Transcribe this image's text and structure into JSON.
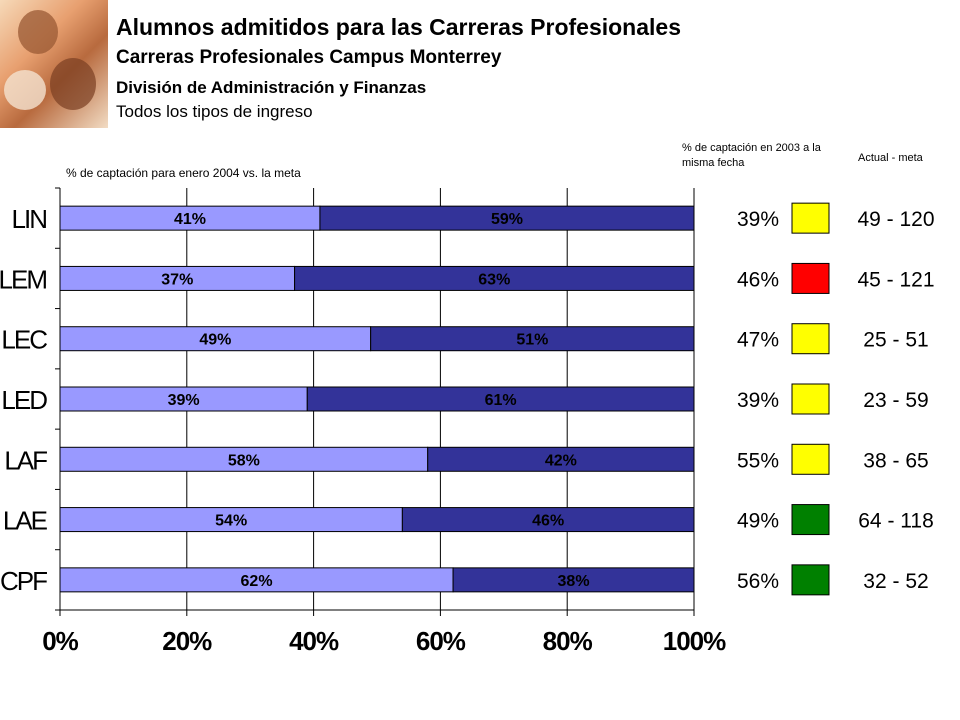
{
  "header": {
    "title": "Alumnos admitidos para las Carreras Profesionales",
    "subtitle": "Carreras Profesionales Campus Monterrey",
    "division": "División de Administración y Finanzas",
    "filter": "Todos los tipos de ingreso"
  },
  "chart_data": {
    "type": "bar",
    "orientation": "horizontal",
    "stacked": true,
    "title": "% de captación para enero 2004 vs. la meta",
    "categories": [
      "LIN",
      "LEM",
      "LEC",
      "LED",
      "LAF",
      "LAE",
      "CPF"
    ],
    "series": [
      {
        "values": [
          41,
          37,
          49,
          39,
          58,
          54,
          62
        ]
      },
      {
        "values": [
          59,
          63,
          51,
          61,
          42,
          46,
          38
        ]
      }
    ],
    "data_labels": [
      [
        "41%",
        "37%",
        "49%",
        "39%",
        "58%",
        "54%",
        "62%"
      ],
      [
        "59%",
        "63%",
        "51%",
        "61%",
        "42%",
        "46%",
        "38%"
      ]
    ],
    "xlim": [
      0,
      100
    ],
    "xticks": [
      "0%",
      "20%",
      "40%",
      "60%",
      "80%",
      "100%"
    ],
    "grid": true,
    "colors": {
      "captado": "#9999ff",
      "resto": "#333399"
    }
  },
  "side_table": {
    "header_prev": "% de captación en 2003 a la misma fecha",
    "header_actual": "Actual -  meta",
    "rows": [
      {
        "prev": "39%",
        "status": "#ffff00",
        "actual_meta": "49 - 120"
      },
      {
        "prev": "46%",
        "status": "#ff0000",
        "actual_meta": "45 - 121"
      },
      {
        "prev": "47%",
        "status": "#ffff00",
        "actual_meta": "25 - 51"
      },
      {
        "prev": "39%",
        "status": "#ffff00",
        "actual_meta": "23 - 59"
      },
      {
        "prev": "55%",
        "status": "#ffff00",
        "actual_meta": "38 - 65"
      },
      {
        "prev": "49%",
        "status": "#008000",
        "actual_meta": "64 - 118"
      },
      {
        "prev": "56%",
        "status": "#008000",
        "actual_meta": "32 - 52"
      }
    ]
  }
}
